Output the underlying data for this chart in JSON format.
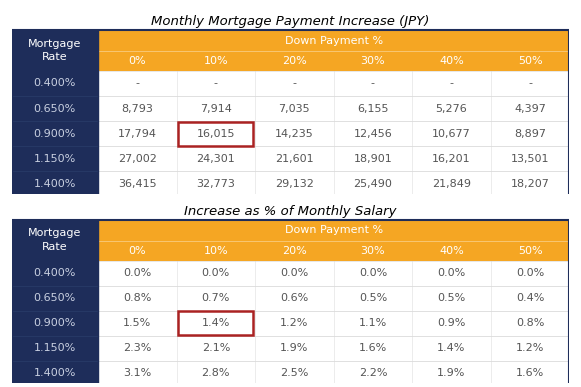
{
  "title1": "Monthly Mortgage Payment Increase (JPY)",
  "title2": "Increase as % of Monthly Salary",
  "col_subheader": [
    "0%",
    "10%",
    "20%",
    "30%",
    "40%",
    "50%"
  ],
  "rates": [
    "0.400%",
    "0.650%",
    "0.900%",
    "1.150%",
    "1.400%"
  ],
  "table1_data": [
    [
      "-",
      "-",
      "-",
      "-",
      "-",
      "-"
    ],
    [
      "8,793",
      "7,914",
      "7,035",
      "6,155",
      "5,276",
      "4,397"
    ],
    [
      "17,794",
      "16,015",
      "14,235",
      "12,456",
      "10,677",
      "8,897"
    ],
    [
      "27,002",
      "24,301",
      "21,601",
      "18,901",
      "16,201",
      "13,501"
    ],
    [
      "36,415",
      "32,773",
      "29,132",
      "25,490",
      "21,849",
      "18,207"
    ]
  ],
  "table2_data": [
    [
      "0.0%",
      "0.0%",
      "0.0%",
      "0.0%",
      "0.0%",
      "0.0%"
    ],
    [
      "0.8%",
      "0.7%",
      "0.6%",
      "0.5%",
      "0.5%",
      "0.4%"
    ],
    [
      "1.5%",
      "1.4%",
      "1.2%",
      "1.1%",
      "0.9%",
      "0.8%"
    ],
    [
      "2.3%",
      "2.1%",
      "1.9%",
      "1.6%",
      "1.4%",
      "1.2%"
    ],
    [
      "3.1%",
      "2.8%",
      "2.5%",
      "2.2%",
      "1.9%",
      "1.6%"
    ]
  ],
  "highlight_cell": [
    2,
    1
  ],
  "navy": "#1e2d5a",
  "orange": "#f5a623",
  "white": "#ffffff",
  "text_dark": "#555555",
  "text_navy_light": "#c8cfe0",
  "red_border": "#aa2222",
  "title_fontsize": 9.5,
  "header_fontsize": 8,
  "cell_fontsize": 8,
  "rate_fontsize": 8
}
